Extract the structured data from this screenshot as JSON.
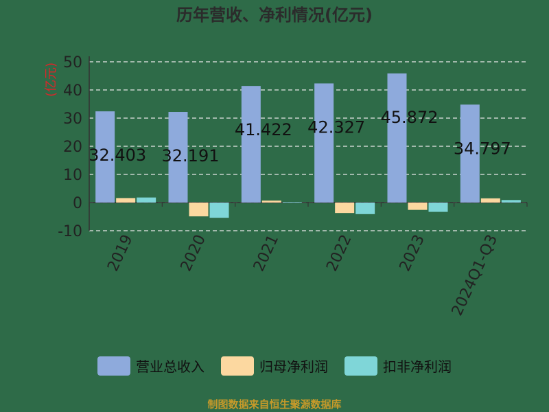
{
  "chart_data": {
    "type": "bar",
    "title": "历年营收、净利情况(亿元)",
    "ylabel": "(亿元)",
    "xlabel": "",
    "categories": [
      "2019",
      "2020",
      "2021",
      "2022",
      "2023",
      "2024Q1-Q3"
    ],
    "ylim": [
      -10,
      50
    ],
    "yticks": [
      50,
      40,
      30,
      20,
      10,
      0,
      -10
    ],
    "grid": true,
    "legend_position": "bottom",
    "series": [
      {
        "name": "营业总收入",
        "color": "#8eaadc",
        "values": [
          32.403,
          32.191,
          41.422,
          42.327,
          45.872,
          34.797
        ],
        "data_labels": [
          "32.403",
          "32.191",
          "41.422",
          "42.327",
          "45.872",
          "34.797"
        ]
      },
      {
        "name": "归母净利润",
        "color": "#fcd8a0",
        "values": [
          1.6,
          -4.9,
          0.7,
          -3.7,
          -2.6,
          1.5
        ]
      },
      {
        "name": "扣非净利润",
        "color": "#7fd6d8",
        "values": [
          1.8,
          -5.4,
          0.2,
          -4.1,
          -3.3,
          0.9
        ]
      }
    ]
  },
  "footer": "制图数据来自恒生聚源数据库"
}
